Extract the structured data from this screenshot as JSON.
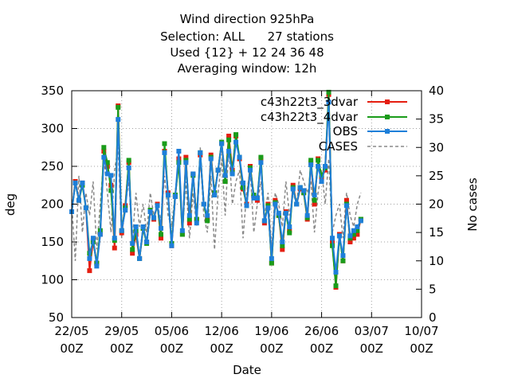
{
  "chart_data": {
    "type": "line",
    "title_lines": [
      "Wind direction 925hPa",
      "Selection: ALL      27 stations",
      "Used {12} + 12 24 36 48",
      "Averaging window: 12h"
    ],
    "xlabel": "Date",
    "ylabel": "deg",
    "y2label": "No cases",
    "ylim": [
      50,
      350
    ],
    "y2lim": [
      0,
      40
    ],
    "yticks": [
      50,
      100,
      150,
      200,
      250,
      300,
      350
    ],
    "y2ticks": [
      0,
      5,
      10,
      15,
      20,
      25,
      30,
      35,
      40
    ],
    "x_start": "2023-05-22 00Z",
    "x_end": "2023-07-10 00Z",
    "xticks": [
      {
        "l1": "22/05",
        "l2": "00Z",
        "date": "2023-05-22"
      },
      {
        "l1": "29/05",
        "l2": "00Z",
        "date": "2023-05-29"
      },
      {
        "l1": "05/06",
        "l2": "00Z",
        "date": "2023-06-05"
      },
      {
        "l1": "12/06",
        "l2": "00Z",
        "date": "2023-06-12"
      },
      {
        "l1": "19/06",
        "l2": "00Z",
        "date": "2023-06-19"
      },
      {
        "l1": "26/06",
        "l2": "00Z",
        "date": "2023-06-26"
      },
      {
        "l1": "03/07",
        "l2": "00Z",
        "date": "2023-07-03"
      },
      {
        "l1": "10/07",
        "l2": "00Z",
        "date": "2023-07-10"
      }
    ],
    "grid": true,
    "legend_position": "top-right",
    "x": [
      "2023-05-22 00Z",
      "2023-05-22 12Z",
      "2023-05-23 00Z",
      "2023-05-23 12Z",
      "2023-05-24 00Z",
      "2023-05-24 12Z",
      "2023-05-25 00Z",
      "2023-05-25 12Z",
      "2023-05-26 00Z",
      "2023-05-26 12Z",
      "2023-05-27 00Z",
      "2023-05-27 12Z",
      "2023-05-28 00Z",
      "2023-05-28 12Z",
      "2023-05-29 00Z",
      "2023-05-29 12Z",
      "2023-05-30 00Z",
      "2023-05-30 12Z",
      "2023-05-31 00Z",
      "2023-05-31 12Z",
      "2023-06-01 00Z",
      "2023-06-01 12Z",
      "2023-06-02 00Z",
      "2023-06-02 12Z",
      "2023-06-03 00Z",
      "2023-06-03 12Z",
      "2023-06-04 00Z",
      "2023-06-04 12Z",
      "2023-06-05 00Z",
      "2023-06-05 12Z",
      "2023-06-06 00Z",
      "2023-06-06 12Z",
      "2023-06-07 00Z",
      "2023-06-07 12Z",
      "2023-06-08 00Z",
      "2023-06-08 12Z",
      "2023-06-09 00Z",
      "2023-06-09 12Z",
      "2023-06-10 00Z",
      "2023-06-10 12Z",
      "2023-06-11 00Z",
      "2023-06-11 12Z",
      "2023-06-12 00Z",
      "2023-06-12 12Z",
      "2023-06-13 00Z",
      "2023-06-13 12Z",
      "2023-06-14 00Z",
      "2023-06-14 12Z",
      "2023-06-15 00Z",
      "2023-06-15 12Z",
      "2023-06-16 00Z",
      "2023-06-16 12Z",
      "2023-06-17 00Z",
      "2023-06-17 12Z",
      "2023-06-18 00Z",
      "2023-06-18 12Z",
      "2023-06-19 00Z",
      "2023-06-19 12Z",
      "2023-06-20 00Z",
      "2023-06-20 12Z",
      "2023-06-21 00Z",
      "2023-06-21 12Z",
      "2023-06-22 00Z",
      "2023-06-22 12Z",
      "2023-06-23 00Z",
      "2023-06-23 12Z",
      "2023-06-24 00Z",
      "2023-06-24 12Z",
      "2023-06-25 00Z",
      "2023-06-25 12Z",
      "2023-06-26 00Z",
      "2023-06-26 12Z",
      "2023-06-27 00Z",
      "2023-06-27 12Z",
      "2023-06-28 00Z",
      "2023-06-28 12Z",
      "2023-06-29 00Z",
      "2023-06-29 12Z",
      "2023-06-30 00Z",
      "2023-06-30 12Z",
      "2023-07-01 00Z",
      "2023-07-01 12Z",
      "2023-07-02 00Z",
      "2023-07-02 12Z",
      "2023-07-03 00Z",
      "2023-07-03 12Z",
      "2023-07-04 00Z"
    ],
    "series": [
      {
        "name": "c43h22t3_3dvar",
        "color": "#e51e10",
        "role": "primary",
        "values": [
          190,
          230,
          205,
          228,
          195,
          112,
          152,
          122,
          160,
          270,
          250,
          225,
          142,
          330,
          162,
          198,
          255,
          135,
          160,
          128,
          168,
          150,
          190,
          180,
          200,
          155,
          270,
          215,
          145,
          210,
          260,
          160,
          262,
          175,
          240,
          180,
          265,
          200,
          180,
          265,
          215,
          245,
          280,
          230,
          290,
          245,
          290,
          260,
          220,
          200,
          250,
          210,
          205,
          260,
          175,
          200,
          122,
          205,
          185,
          140,
          190,
          165,
          225,
          200,
          220,
          215,
          180,
          255,
          200,
          260,
          235,
          245,
          345,
          150,
          90,
          160,
          125,
          205,
          150,
          155,
          160,
          180,
          null,
          null,
          null,
          null,
          null
        ]
      },
      {
        "name": "c43h22t3_4dvar",
        "color": "#1a9c1a",
        "role": "primary",
        "values": [
          190,
          228,
          205,
          225,
          195,
          135,
          150,
          122,
          165,
          275,
          255,
          218,
          152,
          328,
          165,
          195,
          258,
          140,
          165,
          128,
          168,
          148,
          192,
          182,
          198,
          160,
          280,
          212,
          148,
          212,
          255,
          160,
          258,
          180,
          238,
          180,
          268,
          200,
          178,
          262,
          215,
          245,
          282,
          230,
          285,
          242,
          292,
          262,
          222,
          198,
          248,
          212,
          208,
          262,
          178,
          198,
          122,
          202,
          185,
          145,
          188,
          162,
          222,
          200,
          222,
          215,
          182,
          258,
          205,
          258,
          238,
          248,
          348,
          145,
          92,
          158,
          125,
          200,
          155,
          160,
          165,
          180,
          null,
          null,
          null,
          null,
          null
        ]
      },
      {
        "name": "OBS",
        "color": "#1e7fd9",
        "role": "primary",
        "values": [
          190,
          228,
          205,
          228,
          195,
          128,
          155,
          118,
          160,
          262,
          240,
          238,
          155,
          312,
          165,
          192,
          248,
          148,
          170,
          128,
          170,
          150,
          190,
          182,
          198,
          168,
          268,
          212,
          145,
          210,
          270,
          165,
          255,
          185,
          240,
          175,
          268,
          200,
          185,
          260,
          212,
          245,
          280,
          238,
          270,
          240,
          282,
          262,
          228,
          198,
          245,
          208,
          208,
          255,
          178,
          195,
          128,
          200,
          188,
          150,
          188,
          170,
          220,
          200,
          222,
          218,
          185,
          252,
          212,
          250,
          230,
          250,
          335,
          155,
          110,
          158,
          132,
          198,
          158,
          165,
          170,
          178,
          null,
          null,
          null,
          null,
          null
        ]
      },
      {
        "name": "CASES",
        "color": "#888888",
        "role": "secondary",
        "axis": "y2",
        "values": [
          20,
          10,
          25,
          15,
          22,
          18,
          24,
          12,
          20,
          28,
          22,
          15,
          26,
          30,
          14,
          20,
          24,
          14,
          22,
          16,
          20,
          15,
          22,
          18,
          20,
          17,
          25,
          18,
          16,
          22,
          28,
          15,
          24,
          14,
          22,
          16,
          30,
          18,
          15,
          25,
          12,
          22,
          28,
          18,
          30,
          20,
          24,
          26,
          14,
          22,
          26,
          15,
          20,
          24,
          18,
          22,
          12,
          22,
          20,
          16,
          24,
          18,
          22,
          20,
          26,
          24,
          22,
          24,
          15,
          22,
          26,
          20,
          28,
          15,
          18,
          20,
          14,
          22,
          18,
          16,
          20,
          22,
          null,
          null,
          null,
          null,
          null
        ]
      }
    ]
  }
}
